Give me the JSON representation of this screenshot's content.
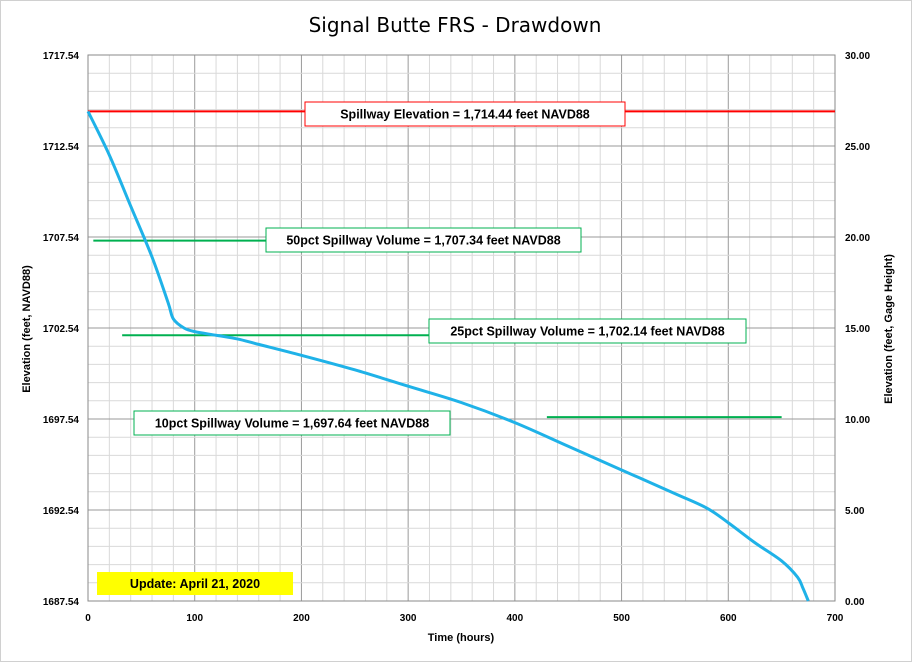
{
  "chart_data": {
    "type": "line",
    "title": "Signal Butte FRS - Drawdown",
    "xlabel": "Time (hours)",
    "ylabel": "Elevation (feet, NAVD88)",
    "y2label": "Elevation (feet, Gage Height)",
    "xlim": [
      0,
      700
    ],
    "ylim": [
      1687.54,
      1717.54
    ],
    "y2lim": [
      0,
      30
    ],
    "x_ticks": [
      "0",
      "100",
      "200",
      "300",
      "400",
      "500",
      "600",
      "700"
    ],
    "y_ticks": [
      "1687.54",
      "1692.54",
      "1697.54",
      "1702.54",
      "1707.54",
      "1712.54",
      "1717.54"
    ],
    "y2_ticks": [
      "0.00",
      "5.00",
      "10.00",
      "15.00",
      "20.00",
      "25.00",
      "30.00"
    ],
    "grid": true,
    "update_label": "Update: April 21, 2020",
    "colors": {
      "series": "#1fb2e8",
      "spillway": "#ff0000",
      "volume": "#00b050",
      "grid": "#c8c8c8",
      "update_bg": "#ffff00"
    },
    "reference_lines": [
      {
        "label": "Spillway Elevation = 1,714.44 feet NAVD88",
        "y": 1714.44,
        "x": [
          0,
          700
        ],
        "color": "#ff0000"
      },
      {
        "label": "50pct Spillway Volume = 1,707.34 feet NAVD88",
        "y": 1707.34,
        "x": [
          5,
          175
        ],
        "color": "#00b050"
      },
      {
        "label": "25pct Spillway Volume = 1,702.14 feet NAVD88",
        "y": 1702.14,
        "x": [
          32,
          330
        ],
        "color": "#00b050"
      },
      {
        "label": "10pct Spillway Volume = 1,697.64 feet NAVD88",
        "y": 1697.64,
        "x": [
          430,
          650
        ],
        "color": "#00b050"
      }
    ],
    "series": [
      {
        "x": [
          0,
          20,
          40,
          60,
          75,
          80,
          90,
          100,
          120,
          140,
          160,
          200,
          250,
          300,
          350,
          400,
          450,
          500,
          550,
          580,
          600,
          625,
          650,
          665,
          670,
          675
        ],
        "values": [
          1714.44,
          1712.04,
          1709.24,
          1706.44,
          1703.94,
          1703.04,
          1702.54,
          1702.34,
          1702.14,
          1701.94,
          1701.64,
          1701.04,
          1700.24,
          1699.34,
          1698.44,
          1697.34,
          1696.04,
          1694.74,
          1693.44,
          1692.64,
          1691.84,
          1690.74,
          1689.74,
          1688.84,
          1688.24,
          1687.54
        ]
      }
    ]
  }
}
